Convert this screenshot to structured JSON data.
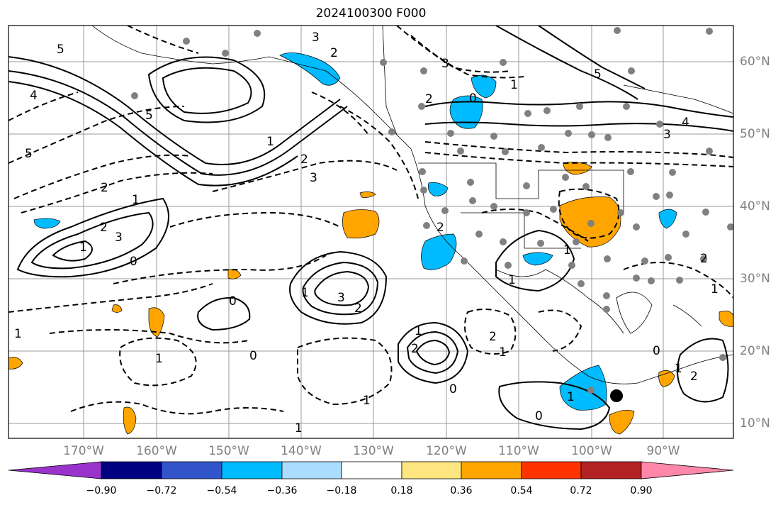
{
  "title": "2024100300 F000",
  "lat_labels": [
    "60°N",
    "50°N",
    "40°N",
    "30°N",
    "20°N",
    "10°N"
  ],
  "lon_labels": [
    "170°W",
    "160°W",
    "150°W",
    "140°W",
    "130°W",
    "120°W",
    "110°W",
    "100°W",
    "90°W"
  ],
  "colorbar": {
    "tick_labels": [
      "−0.90",
      "−0.72",
      "−0.54",
      "−0.36",
      "−0.18",
      "0.18",
      "0.36",
      "0.54",
      "0.72",
      "0.90"
    ],
    "colors": [
      "#9933cc",
      "#000080",
      "#3355cc",
      "#00bbff",
      "#aaddff",
      "#ffffff",
      "#ffe680",
      "#ffa500",
      "#ff3300",
      "#b22222",
      "#ff88aa"
    ]
  },
  "contour_labels": [
    "3",
    "2",
    "5",
    "4",
    "5",
    "1",
    "2",
    "3",
    "5",
    "2",
    "1",
    "3",
    "2",
    "1",
    "0",
    "1",
    "2",
    "3",
    "0",
    "1",
    "2",
    "1",
    "0",
    "2",
    "1",
    "1",
    "0",
    "1",
    "1",
    "0",
    "3",
    "4",
    "5",
    "3",
    "2",
    "1",
    "0",
    "2",
    "1",
    "1",
    "0",
    "1",
    "2",
    "2",
    "1",
    "1"
  ]
}
